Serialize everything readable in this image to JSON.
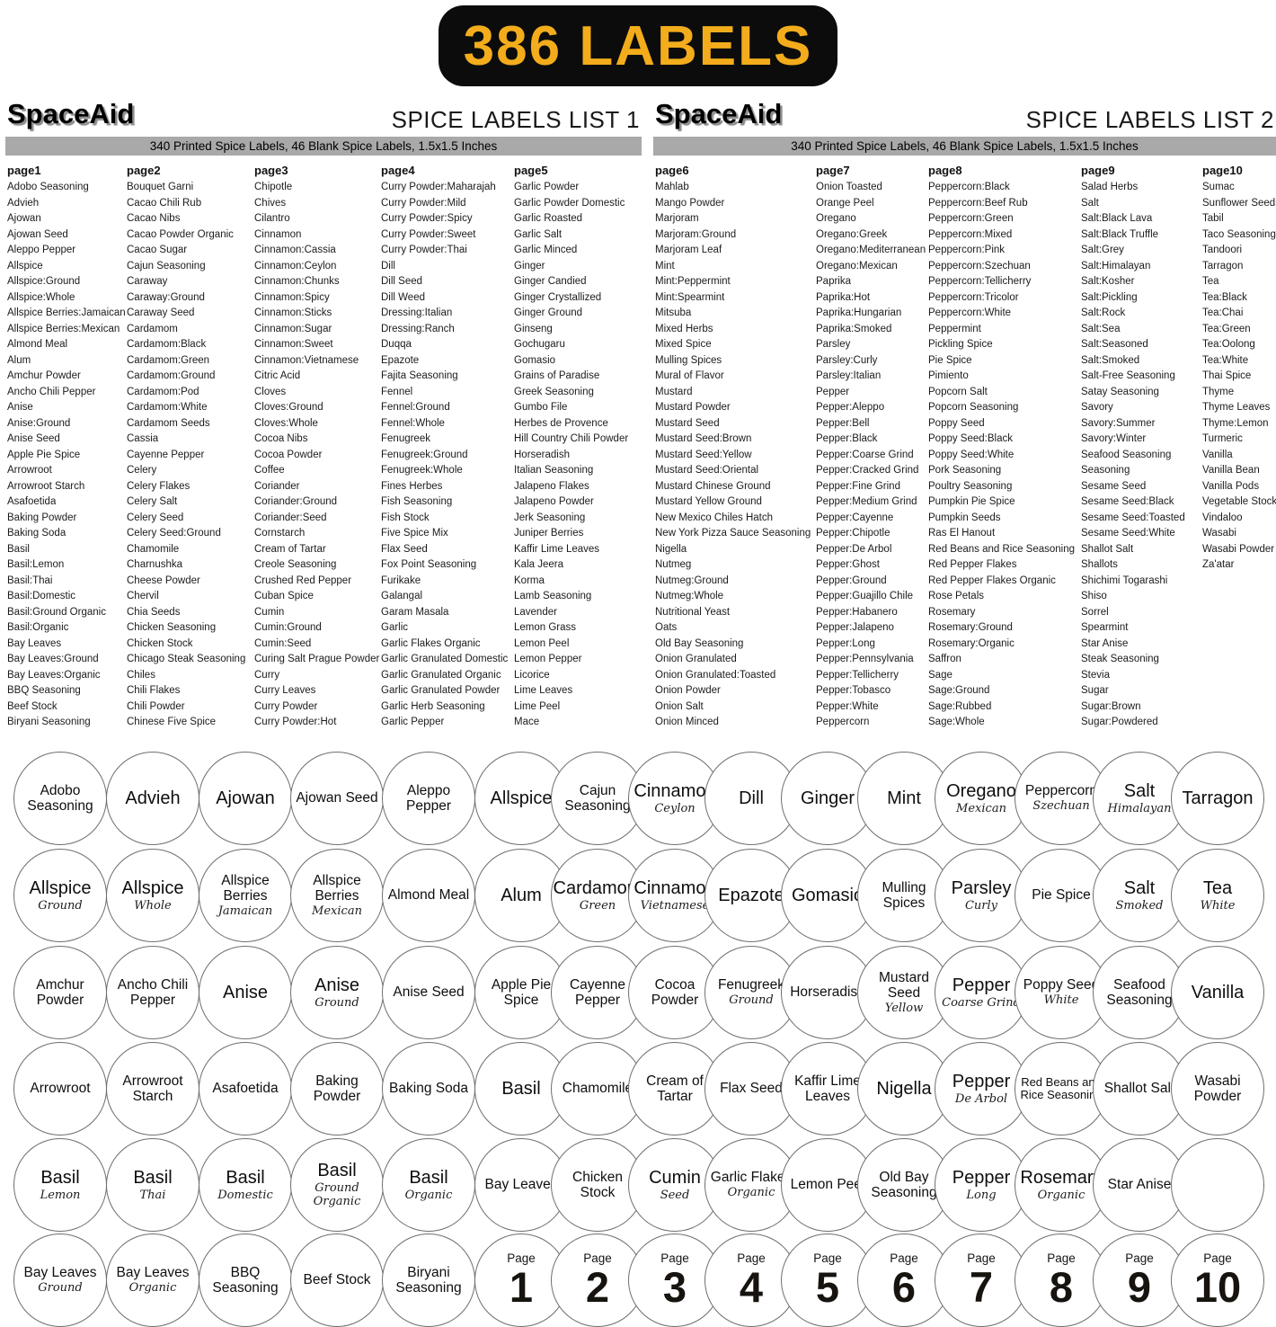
{
  "banner": {
    "label": "386 LABELS",
    "bg_color": "#0c0c0c",
    "text_color": "#F3AC1B"
  },
  "panels": [
    {
      "brand": "SpaceAid",
      "title": "SPICE LABELS LIST 1",
      "subtitle": "340 Printed Spice Labels, 46 Blank Spice Labels, 1.5x1.5 Inches",
      "columns": [
        {
          "header": "page1",
          "items": [
            "Adobo Seasoning",
            "Advieh",
            "Ajowan",
            "Ajowan Seed",
            "Aleppo Pepper",
            "Allspice",
            "Allspice:Ground",
            "Allspice:Whole",
            "Allspice Berries:Jamaican",
            "Allspice Berries:Mexican",
            "Almond Meal",
            "Alum",
            "Amchur Powder",
            "Ancho Chili Pepper",
            "Anise",
            "Anise:Ground",
            "Anise Seed",
            "Apple Pie Spice",
            "Arrowroot",
            "Arrowroot Starch",
            "Asafoetida",
            "Baking Powder",
            "Baking Soda",
            "Basil",
            "Basil:Lemon",
            "Basil:Thai",
            "Basil:Domestic",
            "Basil:Ground Organic",
            "Basil:Organic",
            "Bay Leaves",
            "Bay Leaves:Ground",
            "Bay Leaves:Organic",
            "BBQ Seasoning",
            "Beef Stock",
            "Biryani Seasoning"
          ]
        },
        {
          "header": "page2",
          "items": [
            "Bouquet Garni",
            "Cacao Chili Rub",
            "Cacao Nibs",
            "Cacao Powder Organic",
            "Cacao Sugar",
            "Cajun Seasoning",
            "Caraway",
            "Caraway:Ground",
            "Caraway Seed",
            "Cardamom",
            "Cardamom:Black",
            "Cardamom:Green",
            "Cardamom:Ground",
            "Cardamom:Pod",
            "Cardamom:White",
            "Cardamom Seeds",
            "Cassia",
            "Cayenne Pepper",
            "Celery",
            "Celery Flakes",
            "Celery Salt",
            "Celery Seed",
            "Celery Seed:Ground",
            "Chamomile",
            "Charnushka",
            "Cheese Powder",
            "Chervil",
            "Chia Seeds",
            "Chicken Seasoning",
            "Chicken Stock",
            "Chicago Steak Seasoning",
            "Chiles",
            "Chili Flakes",
            "Chili Powder",
            "Chinese Five Spice"
          ]
        },
        {
          "header": "page3",
          "items": [
            "Chipotle",
            "Chives",
            "Cilantro",
            "Cinnamon",
            "Cinnamon:Cassia",
            "Cinnamon:Ceylon",
            "Cinnamon:Chunks",
            "Cinnamon:Spicy",
            "Cinnamon:Sticks",
            "Cinnamon:Sugar",
            "Cinnamon:Sweet",
            "Cinnamon:Vietnamese",
            "Citric Acid",
            "Cloves",
            "Cloves:Ground",
            "Cloves:Whole",
            "Cocoa Nibs",
            "Cocoa Powder",
            "Coffee",
            "Coriander",
            "Coriander:Ground",
            "Coriander:Seed",
            "Cornstarch",
            "Cream of Tartar",
            "Creole Seasoning",
            "Crushed Red Pepper",
            "Cuban Spice",
            "Cumin",
            "Cumin:Ground",
            "Cumin:Seed",
            "Curing Salt Prague Powder",
            "Curry",
            "Curry Leaves",
            "Curry Powder",
            "Curry Powder:Hot"
          ]
        },
        {
          "header": "page4",
          "items": [
            "Curry Powder:Maharajah",
            "Curry Powder:Mild",
            "Curry Powder:Spicy",
            "Curry Powder:Sweet",
            "Curry Powder:Thai",
            "Dill",
            "Dill Seed",
            "Dill Weed",
            "Dressing:Italian",
            "Dressing:Ranch",
            "Duqqa",
            "Epazote",
            "Fajita Seasoning",
            "Fennel",
            "Fennel:Ground",
            "Fennel:Whole",
            "Fenugreek",
            "Fenugreek:Ground",
            "Fenugreek:Whole",
            "Fines Herbes",
            "Fish Seasoning",
            "Fish Stock",
            "Five Spice Mix",
            "Flax Seed",
            "Fox Point Seasoning",
            "Furikake",
            "Galangal",
            "Garam Masala",
            "Garlic",
            "Garlic Flakes Organic",
            "Garlic Granulated Domestic",
            "Garlic Granulated Organic",
            "Garlic Granulated Powder",
            "Garlic Herb Seasoning",
            "Garlic Pepper"
          ]
        },
        {
          "header": "page5",
          "items": [
            "Garlic Powder",
            "Garlic Powder Domestic",
            "Garlic Roasted",
            "Garlic Salt",
            "Garlic Minced",
            "Ginger",
            "Ginger Candied",
            "Ginger Crystallized",
            "Ginger Ground",
            "Ginseng",
            "Gochugaru",
            "Gomasio",
            "Grains of Paradise",
            "Greek Seasoning",
            "Gumbo File",
            "Herbes de Provence",
            "Hill Country Chili Powder",
            "Horseradish",
            "Italian Seasoning",
            "Jalapeno Flakes",
            "Jalapeno Powder",
            "Jerk Seasoning",
            "Juniper Berries",
            "Kaffir Lime Leaves",
            "Kala Jeera",
            "Korma",
            "Lamb Seasoning",
            "Lavender",
            "Lemon Grass",
            "Lemon Peel",
            "Lemon Pepper",
            "Licorice",
            "Lime Leaves",
            "Lime Peel",
            "Mace"
          ]
        }
      ]
    },
    {
      "brand": "SpaceAid",
      "title": "SPICE LABELS LIST 2",
      "subtitle": "340 Printed Spice Labels, 46 Blank Spice Labels, 1.5x1.5 Inches",
      "columns": [
        {
          "header": "page6",
          "items": [
            "Mahlab",
            "Mango Powder",
            "Marjoram",
            "Marjoram:Ground",
            "Marjoram Leaf",
            "Mint",
            "Mint:Peppermint",
            "Mint:Spearmint",
            "Mitsuba",
            "Mixed Herbs",
            "Mixed Spice",
            "Mulling Spices",
            "Mural of Flavor",
            "Mustard",
            "Mustard Powder",
            "Mustard Seed",
            "Mustard Seed:Brown",
            "Mustard Seed:Yellow",
            "Mustard Seed:Oriental",
            "Mustard Chinese Ground",
            "Mustard Yellow Ground",
            "New Mexico Chiles Hatch",
            "New York Pizza Sauce Seasoning",
            "Nigella",
            "Nutmeg",
            "Nutmeg:Ground",
            "Nutmeg:Whole",
            "Nutritional Yeast",
            "Oats",
            "Old Bay Seasoning",
            "Onion Granulated",
            "Onion Granulated:Toasted",
            "Onion Powder",
            "Onion Salt",
            "Onion Minced"
          ]
        },
        {
          "header": "page7",
          "items": [
            "Onion Toasted",
            "Orange Peel",
            "Oregano",
            "Oregano:Greek",
            "Oregano:Mediterranean",
            "Oregano:Mexican",
            "Paprika",
            "Paprika:Hot",
            "Paprika:Hungarian",
            "Paprika:Smoked",
            "Parsley",
            "Parsley:Curly",
            "Parsley:Italian",
            "Pepper",
            "Pepper:Aleppo",
            "Pepper:Bell",
            "Pepper:Black",
            "Pepper:Coarse Grind",
            "Pepper:Cracked Grind",
            "Pepper:Fine Grind",
            "Pepper:Medium Grind",
            "Pepper:Cayenne",
            "Pepper:Chipotle",
            "Pepper:De Arbol",
            "Pepper:Ghost",
            "Pepper:Ground",
            "Pepper:Guajillo Chile",
            "Pepper:Habanero",
            "Pepper:Jalapeno",
            "Pepper:Long",
            "Pepper:Pennsylvania",
            "Pepper:Tellicherry",
            "Pepper:Tobasco",
            "Pepper:White",
            "Peppercorn"
          ]
        },
        {
          "header": "page8",
          "items": [
            "Peppercorn:Black",
            "Peppercorn:Beef Rub",
            "Peppercorn:Green",
            "Peppercorn:Mixed",
            "Peppercorn:Pink",
            "Peppercorn:Szechuan",
            "Peppercorn:Tellicherry",
            "Peppercorn:Tricolor",
            "Peppercorn:White",
            "Peppermint",
            "Pickling Spice",
            "Pie Spice",
            "Pimiento",
            "Popcorn Salt",
            "Popcorn Seasoning",
            "Poppy Seed",
            "Poppy Seed:Black",
            "Poppy Seed:White",
            "Pork Seasoning",
            "Poultry Seasoning",
            "Pumpkin Pie Spice",
            "Pumpkin Seeds",
            "Ras El Hanout",
            "Red Beans and Rice Seasoning",
            "Red Pepper Flakes",
            "Red Pepper Flakes Organic",
            "Rose Petals",
            "Rosemary",
            "Rosemary:Ground",
            "Rosemary:Organic",
            "Saffron",
            "Sage",
            "Sage:Ground",
            "Sage:Rubbed",
            "Sage:Whole"
          ]
        },
        {
          "header": "page9",
          "items": [
            "Salad Herbs",
            "Salt",
            "Salt:Black Lava",
            "Salt:Black Truffle",
            "Salt:Grey",
            "Salt:Himalayan",
            "Salt:Kosher",
            "Salt:Pickling",
            "Salt:Rock",
            "Salt:Sea",
            "Salt:Seasoned",
            "Salt:Smoked",
            "Salt-Free Seasoning",
            "Satay Seasoning",
            "Savory",
            "Savory:Summer",
            "Savory:Winter",
            "Seafood Seasoning",
            "Seasoning",
            "Sesame Seed",
            "Sesame Seed:Black",
            "Sesame Seed:Toasted",
            "Sesame Seed:White",
            "Shallot Salt",
            "Shallots",
            "Shichimi Togarashi",
            "Shiso",
            "Sorrel",
            "Spearmint",
            "Star Anise",
            "Steak Seasoning",
            "Stevia",
            "Sugar",
            "Sugar:Brown",
            "Sugar:Powdered"
          ]
        },
        {
          "header": "page10",
          "items": [
            "Sumac",
            "Sunflower Seeds",
            "Tabil",
            "Taco Seasoning",
            "Tandoori",
            "Tarragon",
            "Tea",
            "Tea:Black",
            "Tea:Chai",
            "Tea:Green",
            "Tea:Oolong",
            "Tea:White",
            "Thai Spice",
            "Thyme",
            "Thyme Leaves",
            "Thyme:Lemon",
            "Turmeric",
            "Vanilla",
            "Vanilla Bean",
            "Vanilla Pods",
            "Vegetable Stock",
            "Vindaloo",
            "Wasabi",
            "Wasabi Powder",
            "Za'atar"
          ]
        }
      ]
    }
  ],
  "stickers": {
    "rows": [
      [
        {
          "title": "Adobo Seasoning"
        },
        {
          "title": "Advieh"
        },
        {
          "title": "Ajowan"
        },
        {
          "title": "Ajowan Seed"
        },
        {
          "title": "Aleppo Pepper"
        },
        {
          "title": "Allspice"
        },
        {
          "title": "Cajun Seasoning"
        },
        {
          "title": "Cinnamon",
          "subtitle": "Ceylon"
        },
        {
          "title": "Dill"
        },
        {
          "title": "Ginger"
        },
        {
          "title": "Mint"
        },
        {
          "title": "Oregano",
          "subtitle": "Mexican"
        },
        {
          "title": "Peppercorn",
          "subtitle": "Szechuan"
        },
        {
          "title": "Salt",
          "subtitle": "Himalayan"
        },
        {
          "title": "Tarragon"
        }
      ],
      [
        {
          "title": "Allspice",
          "subtitle": "Ground"
        },
        {
          "title": "Allspice",
          "subtitle": "Whole"
        },
        {
          "title": "Allspice Berries",
          "subtitle": "Jamaican"
        },
        {
          "title": "Allspice Berries",
          "subtitle": "Mexican"
        },
        {
          "title": "Almond Meal"
        },
        {
          "title": "Alum"
        },
        {
          "title": "Cardamom",
          "subtitle": "Green"
        },
        {
          "title": "Cinnamon",
          "subtitle": "Vietnamese"
        },
        {
          "title": "Epazote"
        },
        {
          "title": "Gomasio"
        },
        {
          "title": "Mulling Spices"
        },
        {
          "title": "Parsley",
          "subtitle": "Curly"
        },
        {
          "title": "Pie Spice"
        },
        {
          "title": "Salt",
          "subtitle": "Smoked"
        },
        {
          "title": "Tea",
          "subtitle": "White"
        }
      ],
      [
        {
          "title": "Amchur Powder"
        },
        {
          "title": "Ancho Chili Pepper"
        },
        {
          "title": "Anise"
        },
        {
          "title": "Anise",
          "subtitle": "Ground"
        },
        {
          "title": "Anise Seed"
        },
        {
          "title": "Apple Pie Spice"
        },
        {
          "title": "Cayenne Pepper"
        },
        {
          "title": "Cocoa Powder"
        },
        {
          "title": "Fenugreek",
          "subtitle": "Ground"
        },
        {
          "title": "Horseradish"
        },
        {
          "title": "Mustard Seed",
          "subtitle": "Yellow"
        },
        {
          "title": "Pepper",
          "subtitle": "Coarse Grind"
        },
        {
          "title": "Poppy Seed",
          "subtitle": "White"
        },
        {
          "title": "Seafood Seasoning"
        },
        {
          "title": "Vanilla"
        }
      ],
      [
        {
          "title": "Arrowroot"
        },
        {
          "title": "Arrowroot Starch"
        },
        {
          "title": "Asafoetida"
        },
        {
          "title": "Baking Powder"
        },
        {
          "title": "Baking Soda"
        },
        {
          "title": "Basil"
        },
        {
          "title": "Chamomile"
        },
        {
          "title": "Cream of Tartar"
        },
        {
          "title": "Flax Seed"
        },
        {
          "title": "Kaffir Lime Leaves"
        },
        {
          "title": "Nigella"
        },
        {
          "title": "Pepper",
          "subtitle": "De Arbol"
        },
        {
          "title": "Red Beans and Rice Seasoning"
        },
        {
          "title": "Shallot Salt"
        },
        {
          "title": "Wasabi Powder"
        }
      ],
      [
        {
          "title": "Basil",
          "subtitle": "Lemon"
        },
        {
          "title": "Basil",
          "subtitle": "Thai"
        },
        {
          "title": "Basil",
          "subtitle": "Domestic"
        },
        {
          "title": "Basil",
          "subtitle": "Ground Organic"
        },
        {
          "title": "Basil",
          "subtitle": "Organic"
        },
        {
          "title": "Bay Leaves"
        },
        {
          "title": "Chicken Stock"
        },
        {
          "title": "Cumin",
          "subtitle": "Seed"
        },
        {
          "title": "Garlic Flakes",
          "subtitle": "Organic"
        },
        {
          "title": "Lemon Peel"
        },
        {
          "title": "Old Bay Seasoning"
        },
        {
          "title": "Pepper",
          "subtitle": "Long"
        },
        {
          "title": "Rosemary",
          "subtitle": "Organic"
        },
        {
          "title": "Star Anise"
        },
        {
          "title": ""
        }
      ],
      [
        {
          "title": "Bay Leaves",
          "subtitle": "Ground"
        },
        {
          "title": "Bay Leaves",
          "subtitle": "Organic"
        },
        {
          "title": "BBQ Seasoning"
        },
        {
          "title": "Beef Stock"
        },
        {
          "title": "Biryani Seasoning"
        },
        {
          "page_label": "Page",
          "page_number": "1"
        },
        {
          "page_label": "Page",
          "page_number": "2"
        },
        {
          "page_label": "Page",
          "page_number": "3"
        },
        {
          "page_label": "Page",
          "page_number": "4"
        },
        {
          "page_label": "Page",
          "page_number": "5"
        },
        {
          "page_label": "Page",
          "page_number": "6"
        },
        {
          "page_label": "Page",
          "page_number": "7"
        },
        {
          "page_label": "Page",
          "page_number": "8"
        },
        {
          "page_label": "Page",
          "page_number": "9"
        },
        {
          "page_label": "Page",
          "page_number": "10"
        }
      ]
    ]
  }
}
